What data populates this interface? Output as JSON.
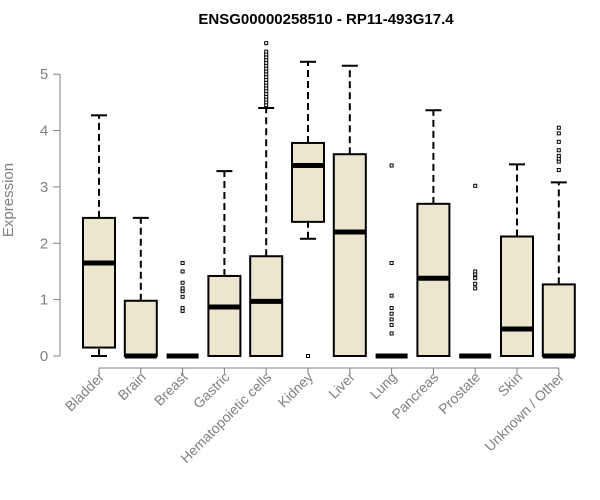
{
  "chart_data": {
    "type": "boxplot",
    "title": "ENSG00000258510 - RP11-493G17.4",
    "ylabel": "Expression",
    "ylim": [
      0,
      5.5
    ],
    "yticks": [
      0,
      1,
      2,
      3,
      4,
      5
    ],
    "ytick_labels": [
      "0",
      "1",
      "2",
      "3",
      "4",
      "5"
    ],
    "box_color": "#ede6cf",
    "categories": [
      "Bladder",
      "Brain",
      "Breast",
      "Gastric",
      "Hematopoietic cells",
      "Kidney",
      "Liver",
      "Lung",
      "Pancreas",
      "Prostate",
      "Skin",
      "Unknown / Other"
    ],
    "boxes": [
      {
        "min": 0.0,
        "q1": 0.15,
        "median": 1.65,
        "q3": 2.45,
        "max": 4.27,
        "outliers": []
      },
      {
        "min": 0.0,
        "q1": 0.0,
        "median": 0.0,
        "q3": 0.98,
        "max": 2.45,
        "outliers": []
      },
      {
        "min": 0.0,
        "q1": 0.0,
        "median": 0.0,
        "q3": 0.0,
        "max": 0.0,
        "outliers": [
          0.8,
          0.85,
          1.05,
          1.15,
          1.2,
          1.3,
          1.5,
          1.65
        ]
      },
      {
        "min": 0.0,
        "q1": 0.0,
        "median": 0.87,
        "q3": 1.42,
        "max": 3.28,
        "outliers": []
      },
      {
        "min": 0.0,
        "q1": 0.0,
        "median": 0.97,
        "q3": 1.77,
        "max": 4.4,
        "outliers": [
          4.45,
          4.5,
          4.55,
          4.6,
          4.65,
          4.7,
          4.75,
          4.8,
          4.85,
          4.9,
          4.95,
          5.0,
          5.05,
          5.1,
          5.15,
          5.2,
          5.25,
          5.3,
          5.35,
          5.4,
          5.55
        ]
      },
      {
        "min": 2.08,
        "q1": 2.38,
        "median": 3.38,
        "q3": 3.78,
        "max": 5.22,
        "outliers": [
          0.0
        ]
      },
      {
        "min": 0.0,
        "q1": 0.0,
        "median": 2.2,
        "q3": 3.58,
        "max": 5.15,
        "outliers": []
      },
      {
        "min": 0.0,
        "q1": 0.0,
        "median": 0.0,
        "q3": 0.0,
        "max": 0.0,
        "outliers": [
          0.4,
          0.55,
          0.65,
          0.75,
          0.85,
          1.07,
          1.65,
          3.38
        ]
      },
      {
        "min": 0.0,
        "q1": 0.0,
        "median": 1.38,
        "q3": 2.7,
        "max": 4.36,
        "outliers": []
      },
      {
        "min": 0.0,
        "q1": 0.0,
        "median": 0.0,
        "q3": 0.0,
        "max": 0.0,
        "outliers": [
          1.2,
          1.28,
          1.38,
          1.45,
          1.5,
          3.02
        ]
      },
      {
        "min": 0.0,
        "q1": 0.0,
        "median": 0.48,
        "q3": 2.12,
        "max": 3.4,
        "outliers": []
      },
      {
        "min": 0.0,
        "q1": 0.0,
        "median": 0.0,
        "q3": 1.27,
        "max": 3.08,
        "outliers": [
          3.3,
          3.45,
          3.5,
          3.55,
          3.65,
          3.8,
          3.95,
          4.05
        ]
      }
    ]
  }
}
